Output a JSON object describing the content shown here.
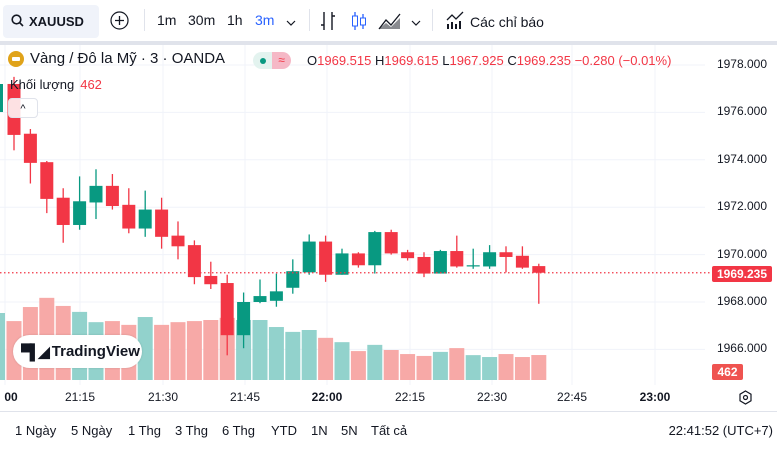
{
  "toolbar": {
    "symbol": "XAUUSD",
    "intervals": [
      "1m",
      "30m",
      "1h",
      "3m"
    ],
    "active_interval": "3m",
    "indicators_label": "Các chỉ báo",
    "icons": [
      "search-icon",
      "plus-circle-icon",
      "chevron-down-icon",
      "bar-chart-icon",
      "candle-chart-icon",
      "area-chart-icon",
      "indicators-icon"
    ]
  },
  "legend": {
    "title": "Vàng / Đô la Mỹ · 3 · OANDA",
    "pill_b": "≈",
    "o_label": "O",
    "o": "1969.515",
    "h_label": "H",
    "h": "1969.615",
    "l_label": "L",
    "l": "1967.925",
    "c_label": "C",
    "c": "1969.235",
    "change": "−0.280 (−0.01%)",
    "volume_label": "Khối lượng",
    "volume_value": "462",
    "collapse": "^"
  },
  "logo": {
    "mark": "17",
    "text": "TradingView"
  },
  "colors": {
    "up": "#089981",
    "down": "#f23645",
    "vol_up": "#92d2cc",
    "vol_down": "#f7a9a7"
  },
  "price_axis": {
    "ticks": [
      "1978.000",
      "1976.000",
      "1974.000",
      "1972.000",
      "1970.000",
      "1968.000",
      "1966.000"
    ],
    "last_price": "1969.235",
    "last_volume": "462"
  },
  "time_axis": {
    "labels": [
      "00",
      "21:15",
      "21:30",
      "21:45",
      "22:00",
      "22:15",
      "22:30",
      "22:45",
      "23:00"
    ],
    "bold": [
      "00",
      "22:00",
      "23:00"
    ]
  },
  "bottom": {
    "ranges": [
      "1 Ngày",
      "5 Ngày",
      "1 Thg",
      "3 Thg",
      "6 Thg",
      "YTD",
      "1N",
      "5N",
      "Tất cả"
    ],
    "clock": "22:41:52 (UTC+7)"
  },
  "chart_data": {
    "type": "candlestick",
    "symbol": "XAUUSD",
    "interval": "3m",
    "ylim": [
      1965.0,
      1978.8
    ],
    "candles": [
      {
        "o": 1977.2,
        "h": 1977.5,
        "l": 1974.4,
        "c": 1975.05,
        "v": 1090
      },
      {
        "o": 1975.1,
        "h": 1975.3,
        "l": 1973.0,
        "c": 1973.87,
        "v": 1350
      },
      {
        "o": 1973.9,
        "h": 1973.95,
        "l": 1971.75,
        "c": 1972.35,
        "v": 1520
      },
      {
        "o": 1972.4,
        "h": 1972.8,
        "l": 1970.5,
        "c": 1971.25,
        "v": 1370
      },
      {
        "o": 1971.25,
        "h": 1973.3,
        "l": 1971.05,
        "c": 1972.25,
        "v": 1260
      },
      {
        "o": 1972.2,
        "h": 1973.6,
        "l": 1971.5,
        "c": 1972.9,
        "v": 1070
      },
      {
        "o": 1972.9,
        "h": 1973.4,
        "l": 1971.9,
        "c": 1972.05,
        "v": 1090
      },
      {
        "o": 1972.1,
        "h": 1972.8,
        "l": 1970.9,
        "c": 1971.1,
        "v": 1020
      },
      {
        "o": 1971.1,
        "h": 1972.7,
        "l": 1970.75,
        "c": 1971.9,
        "v": 1165
      },
      {
        "o": 1971.9,
        "h": 1972.4,
        "l": 1970.25,
        "c": 1970.75,
        "v": 1020
      },
      {
        "o": 1970.8,
        "h": 1971.4,
        "l": 1969.8,
        "c": 1970.35,
        "v": 1070
      },
      {
        "o": 1970.4,
        "h": 1970.6,
        "l": 1968.75,
        "c": 1969.05,
        "v": 1090
      },
      {
        "o": 1969.1,
        "h": 1969.7,
        "l": 1968.55,
        "c": 1968.75,
        "v": 1110
      },
      {
        "o": 1968.8,
        "h": 1969.15,
        "l": 1965.75,
        "c": 1966.6,
        "v": 1150
      },
      {
        "o": 1966.6,
        "h": 1968.4,
        "l": 1966.05,
        "c": 1968.0,
        "v": 1110
      },
      {
        "o": 1968.0,
        "h": 1968.95,
        "l": 1967.95,
        "c": 1968.25,
        "v": 1110
      },
      {
        "o": 1968.05,
        "h": 1969.2,
        "l": 1967.8,
        "c": 1968.45,
        "v": 980
      },
      {
        "o": 1968.6,
        "h": 1969.8,
        "l": 1968.35,
        "c": 1969.3,
        "v": 890
      },
      {
        "o": 1969.25,
        "h": 1970.85,
        "l": 1969.15,
        "c": 1970.55,
        "v": 925
      },
      {
        "o": 1970.55,
        "h": 1970.8,
        "l": 1968.85,
        "c": 1969.15,
        "v": 780
      },
      {
        "o": 1969.15,
        "h": 1970.25,
        "l": 1969.15,
        "c": 1970.05,
        "v": 700
      },
      {
        "o": 1970.05,
        "h": 1970.1,
        "l": 1969.45,
        "c": 1969.55,
        "v": 535
      },
      {
        "o": 1969.55,
        "h": 1971.0,
        "l": 1969.2,
        "c": 1970.95,
        "v": 650
      },
      {
        "o": 1970.95,
        "h": 1971.05,
        "l": 1970.0,
        "c": 1970.05,
        "v": 555
      },
      {
        "o": 1970.1,
        "h": 1970.2,
        "l": 1969.75,
        "c": 1969.85,
        "v": 480
      },
      {
        "o": 1969.9,
        "h": 1970.1,
        "l": 1969.05,
        "c": 1969.2,
        "v": 445
      },
      {
        "o": 1969.2,
        "h": 1970.2,
        "l": 1969.2,
        "c": 1970.15,
        "v": 520
      },
      {
        "o": 1970.15,
        "h": 1970.8,
        "l": 1969.45,
        "c": 1969.5,
        "v": 590
      },
      {
        "o": 1969.5,
        "h": 1970.25,
        "l": 1969.4,
        "c": 1969.55,
        "v": 460
      },
      {
        "o": 1969.5,
        "h": 1970.4,
        "l": 1969.4,
        "c": 1970.1,
        "v": 425
      },
      {
        "o": 1970.1,
        "h": 1970.35,
        "l": 1969.25,
        "c": 1969.9,
        "v": 480
      },
      {
        "o": 1969.95,
        "h": 1970.35,
        "l": 1969.4,
        "c": 1969.45,
        "v": 425
      },
      {
        "o": 1969.515,
        "h": 1969.615,
        "l": 1967.925,
        "c": 1969.235,
        "v": 462
      }
    ]
  }
}
